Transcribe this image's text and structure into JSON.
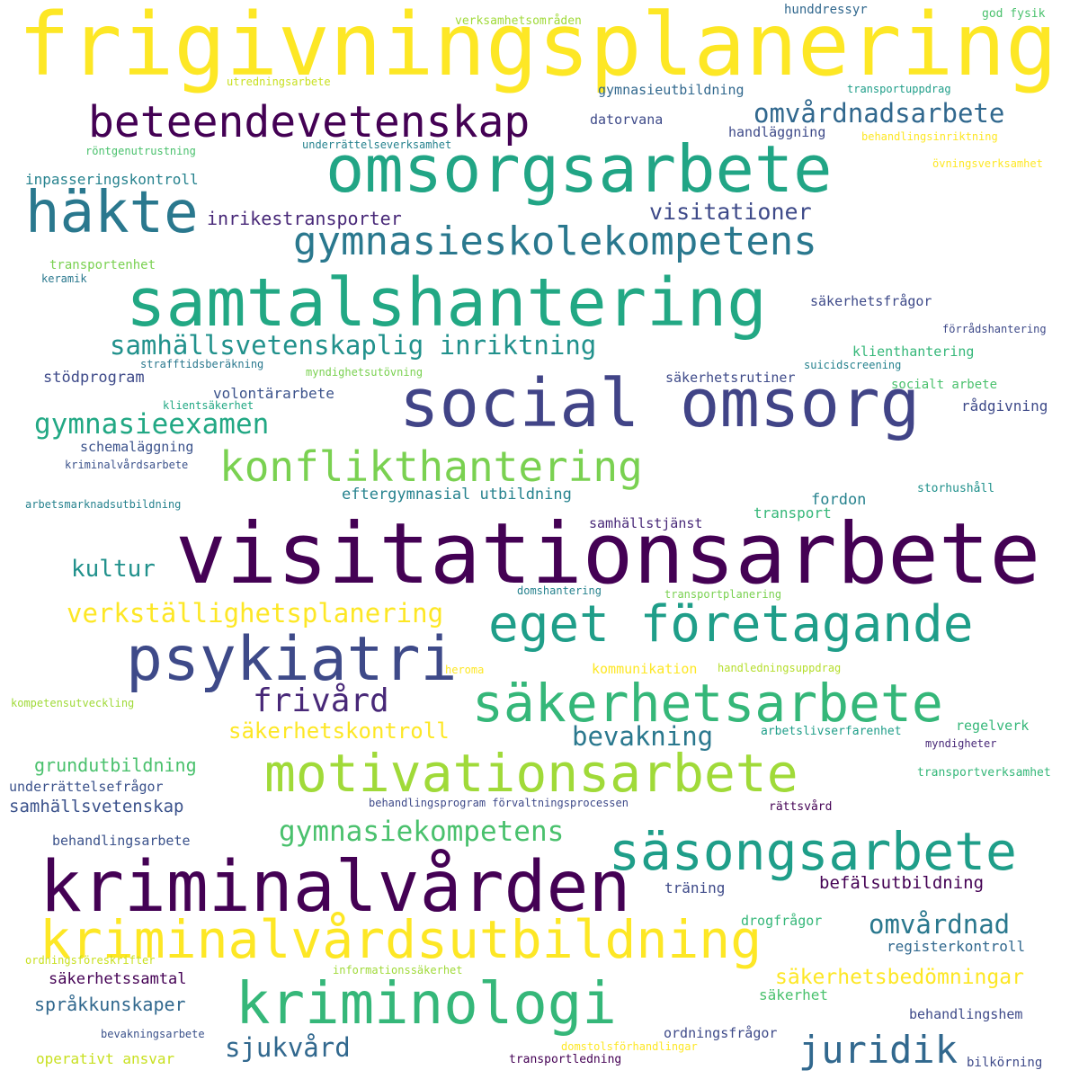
{
  "words": [
    {
      "text": "frigivningsplanering",
      "color": "#fde725"
    },
    {
      "text": "verksamhetsområden",
      "color": "#a0da39"
    },
    {
      "text": "hunddressyr",
      "color": "#31688e"
    },
    {
      "text": "god fysik",
      "color": "#4ac16d"
    },
    {
      "text": "utredningsarbete",
      "color": "#c8e020"
    },
    {
      "text": "gymnasieutbildning",
      "color": "#31688e"
    },
    {
      "text": "transportuppdrag",
      "color": "#1f9e89"
    },
    {
      "text": "beteendevetenskap",
      "color": "#440154"
    },
    {
      "text": "omvårdnadsarbete",
      "color": "#31688e"
    },
    {
      "text": "datorvana",
      "color": "#3e4a89"
    },
    {
      "text": "handläggning",
      "color": "#3e4a89"
    },
    {
      "text": "behandlingsinriktning",
      "color": "#fde725"
    },
    {
      "text": "underrättelseverksamhet",
      "color": "#26828e"
    },
    {
      "text": "röntgenutrustning",
      "color": "#4ac16d"
    },
    {
      "text": "omsorgsarbete",
      "color": "#21a585"
    },
    {
      "text": "övningsverksamhet",
      "color": "#fde725"
    },
    {
      "text": "inpasseringskontroll",
      "color": "#26828e"
    },
    {
      "text": "häkte",
      "color": "#2a788e"
    },
    {
      "text": "inrikestransporter",
      "color": "#482878"
    },
    {
      "text": "visitationer",
      "color": "#3e4a89"
    },
    {
      "text": "gymnasieskolekompetens",
      "color": "#2a788e"
    },
    {
      "text": "transportenhet",
      "color": "#7ad151"
    },
    {
      "text": "keramik",
      "color": "#2a788e"
    },
    {
      "text": "samtalshantering",
      "color": "#22a884"
    },
    {
      "text": "säkerhetsfrågor",
      "color": "#3e4a89"
    },
    {
      "text": "förrådshantering",
      "color": "#3e4a89"
    },
    {
      "text": "samhällsvetenskaplig inriktning",
      "color": "#21918c"
    },
    {
      "text": "klienthantering",
      "color": "#35b779"
    },
    {
      "text": "strafftidsberäkning",
      "color": "#2a788e"
    },
    {
      "text": "myndighetsutövning",
      "color": "#7ad151"
    },
    {
      "text": "suicidscreening",
      "color": "#26828e"
    },
    {
      "text": "stödprogram",
      "color": "#3e4a89"
    },
    {
      "text": "säkerhetsrutiner",
      "color": "#3e4a89"
    },
    {
      "text": "socialt arbete",
      "color": "#4ac16d"
    },
    {
      "text": "volontärarbete",
      "color": "#3b528b"
    },
    {
      "text": "klientsäkerhet",
      "color": "#22a884"
    },
    {
      "text": "social omsorg",
      "color": "#414487"
    },
    {
      "text": "rådgivning",
      "color": "#3e4a89"
    },
    {
      "text": "gymnasieexamen",
      "color": "#22a884"
    },
    {
      "text": "schemaläggning",
      "color": "#3b528b"
    },
    {
      "text": "konflikthantering",
      "color": "#7ad151"
    },
    {
      "text": "kriminalvårdsarbete",
      "color": "#3b528b"
    },
    {
      "text": "arbetsmarknadsutbildning",
      "color": "#26828e"
    },
    {
      "text": "eftergymnasial utbildning",
      "color": "#26828e"
    },
    {
      "text": "fordon",
      "color": "#26828e"
    },
    {
      "text": "storhushåll",
      "color": "#21918c"
    },
    {
      "text": "samhällstjänst",
      "color": "#482878"
    },
    {
      "text": "transport",
      "color": "#35b779"
    },
    {
      "text": "visitationsarbete",
      "color": "#440154"
    },
    {
      "text": "kultur",
      "color": "#21918c"
    },
    {
      "text": "domshantering",
      "color": "#26828e"
    },
    {
      "text": "transportplanering",
      "color": "#7ad151"
    },
    {
      "text": "verkställighetsplanering",
      "color": "#fde725"
    },
    {
      "text": "eget företagande",
      "color": "#1f9e89"
    },
    {
      "text": "psykiatri",
      "color": "#3e4a89"
    },
    {
      "text": "heroma",
      "color": "#fde725"
    },
    {
      "text": "kommunikation",
      "color": "#fde725"
    },
    {
      "text": "handledningsuppdrag",
      "color": "#b5de2b"
    },
    {
      "text": "kompetensutveckling",
      "color": "#a0da39"
    },
    {
      "text": "frivård",
      "color": "#482878"
    },
    {
      "text": "säkerhetsarbete",
      "color": "#35b779"
    },
    {
      "text": "säkerhetskontroll",
      "color": "#fde725"
    },
    {
      "text": "bevakning",
      "color": "#2a788e"
    },
    {
      "text": "arbetslivserfarenhet",
      "color": "#1f9e89"
    },
    {
      "text": "regelverk",
      "color": "#35b779"
    },
    {
      "text": "myndigheter",
      "color": "#482878"
    },
    {
      "text": "grundutbildning",
      "color": "#4ac16d"
    },
    {
      "text": "motivationsarbete",
      "color": "#a0da39"
    },
    {
      "text": "underrättelsefrågor",
      "color": "#3b528b"
    },
    {
      "text": "transportverksamhet",
      "color": "#35b779"
    },
    {
      "text": "samhällsvetenskap",
      "color": "#3b528b"
    },
    {
      "text": "behandlingsprogram förvaltningsprocessen",
      "color": "#3e4a89"
    },
    {
      "text": "rättsvård",
      "color": "#440154"
    },
    {
      "text": "gymnasiekompetens",
      "color": "#4ac16d"
    },
    {
      "text": "behandlingsarbete",
      "color": "#3b528b"
    },
    {
      "text": "säsongsarbete",
      "color": "#1f9e89"
    },
    {
      "text": "kriminalvården",
      "color": "#440154"
    },
    {
      "text": "träning",
      "color": "#3e4a89"
    },
    {
      "text": "befälsutbildning",
      "color": "#440154"
    },
    {
      "text": "kriminalvårdsutbildning",
      "color": "#fde725"
    },
    {
      "text": "drogfrågor",
      "color": "#35b779"
    },
    {
      "text": "omvårdnad",
      "color": "#2a788e"
    },
    {
      "text": "registerkontroll",
      "color": "#31688e"
    },
    {
      "text": "ordningsföreskrifter",
      "color": "#c8e020"
    },
    {
      "text": "säkerhetssamtal",
      "color": "#440154"
    },
    {
      "text": "informationssäkerhet",
      "color": "#a0da39"
    },
    {
      "text": "säkerhetsbedömningar",
      "color": "#fde725"
    },
    {
      "text": "språkkunskaper",
      "color": "#31688e"
    },
    {
      "text": "kriminologi",
      "color": "#35b779"
    },
    {
      "text": "säkerhet",
      "color": "#4ac16d"
    },
    {
      "text": "behandlingshem",
      "color": "#3e4a89"
    },
    {
      "text": "bevakningsarbete",
      "color": "#3b528b"
    },
    {
      "text": "ordningsfrågor",
      "color": "#3e4a89"
    },
    {
      "text": "sjukvård",
      "color": "#31688e"
    },
    {
      "text": "juridik",
      "color": "#31688e"
    },
    {
      "text": "domstolsförhandlingar",
      "color": "#fde725"
    },
    {
      "text": "operativt ansvar",
      "color": "#c8e020"
    },
    {
      "text": "transportledning",
      "color": "#440154"
    },
    {
      "text": "bilkörning",
      "color": "#3e4a89"
    }
  ]
}
